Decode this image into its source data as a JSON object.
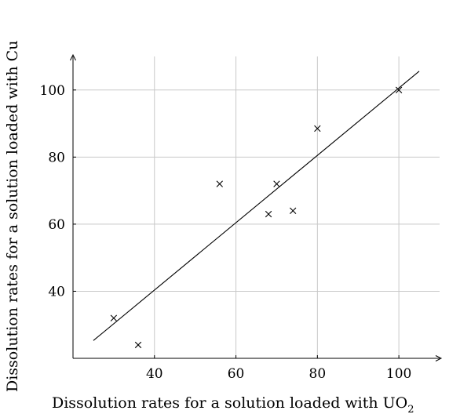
{
  "chart_data": {
    "type": "scatter",
    "xlabel": "Dissolution rates for a solution loaded with UO",
    "xlabel_subscript": "2",
    "ylabel": "Dissolution rates for a solution loaded with Cu",
    "xlim": [
      20,
      110
    ],
    "ylim": [
      20,
      110
    ],
    "grid": true,
    "x_ticks": [
      40,
      60,
      80,
      100
    ],
    "y_ticks": [
      40,
      60,
      80,
      100
    ],
    "series": [
      {
        "marker": "x",
        "points": [
          {
            "x": 30,
            "y": 32
          },
          {
            "x": 36,
            "y": 24
          },
          {
            "x": 56,
            "y": 72
          },
          {
            "x": 68,
            "y": 63
          },
          {
            "x": 70,
            "y": 72
          },
          {
            "x": 74,
            "y": 64
          },
          {
            "x": 80,
            "y": 88.5
          },
          {
            "x": 100,
            "y": 100
          }
        ]
      }
    ],
    "fit_line": {
      "x1": 25,
      "y1": 25.3,
      "x2": 105,
      "y2": 105.6
    }
  }
}
